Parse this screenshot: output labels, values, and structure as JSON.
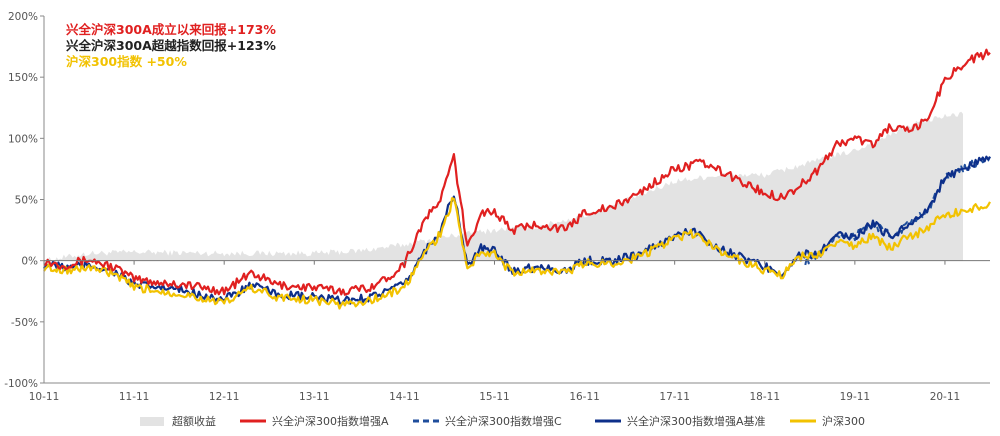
{
  "chart_data": {
    "type": "line",
    "x_ticks": [
      "10-11",
      "11-11",
      "12-11",
      "13-11",
      "14-11",
      "15-11",
      "16-11",
      "17-11",
      "18-11",
      "19-11",
      "20-11"
    ],
    "y_ticks": [
      "200%",
      "150%",
      "100%",
      "50%",
      "0%",
      "-50%",
      "-100%"
    ],
    "ylim": [
      -100,
      200
    ],
    "grid": false,
    "legend_position": "bottom",
    "annotations": [
      {
        "text": "兴全沪深300A成立以来回报+173%",
        "color": "#e02020"
      },
      {
        "text": "兴全沪深300A超越指数回报+123%",
        "color": "#222222"
      },
      {
        "text": "沪深300指数 +50%",
        "color": "#f2c200"
      }
    ],
    "series": [
      {
        "name": "超额收益",
        "style": "area",
        "color": "#e3e3e3",
        "values": [
          [
            0,
            0
          ],
          [
            0.5,
            6
          ],
          [
            1,
            7
          ],
          [
            2,
            6
          ],
          [
            3,
            6
          ],
          [
            3.5,
            8
          ],
          [
            4,
            13
          ],
          [
            4.5,
            20
          ],
          [
            5,
            25
          ],
          [
            5.5,
            28
          ],
          [
            6,
            37
          ],
          [
            6.5,
            50
          ],
          [
            7,
            65
          ],
          [
            7.5,
            70
          ],
          [
            8,
            70
          ],
          [
            8.5,
            80
          ],
          [
            9,
            90
          ],
          [
            9.3,
            100
          ],
          [
            9.7,
            113
          ],
          [
            10,
            118
          ],
          [
            10.2,
            120
          ]
        ]
      },
      {
        "name": "兴全沪深300指数增强A",
        "style": "solid",
        "color": "#e02020",
        "values": [
          [
            0,
            0
          ],
          [
            0.2,
            -4
          ],
          [
            0.5,
            1
          ],
          [
            0.8,
            -6
          ],
          [
            1,
            -15
          ],
          [
            1.3,
            -18
          ],
          [
            1.6,
            -20
          ],
          [
            2,
            -25
          ],
          [
            2.3,
            -10
          ],
          [
            2.6,
            -20
          ],
          [
            3,
            -22
          ],
          [
            3.3,
            -25
          ],
          [
            3.6,
            -22
          ],
          [
            3.8,
            -15
          ],
          [
            4,
            -2
          ],
          [
            4.2,
            30
          ],
          [
            4.4,
            50
          ],
          [
            4.55,
            85
          ],
          [
            4.7,
            10
          ],
          [
            4.85,
            40
          ],
          [
            5,
            40
          ],
          [
            5.2,
            25
          ],
          [
            5.5,
            30
          ],
          [
            5.8,
            25
          ],
          [
            6,
            40
          ],
          [
            6.3,
            43
          ],
          [
            6.6,
            55
          ],
          [
            7,
            75
          ],
          [
            7.3,
            80
          ],
          [
            7.6,
            70
          ],
          [
            8,
            55
          ],
          [
            8.2,
            52
          ],
          [
            8.4,
            62
          ],
          [
            8.6,
            75
          ],
          [
            8.8,
            95
          ],
          [
            9,
            100
          ],
          [
            9.2,
            95
          ],
          [
            9.4,
            110
          ],
          [
            9.6,
            105
          ],
          [
            9.8,
            115
          ],
          [
            10,
            148
          ],
          [
            10.1,
            155
          ],
          [
            10.3,
            165
          ],
          [
            10.5,
            170
          ]
        ]
      },
      {
        "name": "兴全沪深300指数增强C",
        "style": "dashed",
        "color": "#1f4e9c",
        "values": [
          [
            8.45,
            0
          ],
          [
            8.6,
            5
          ],
          [
            8.8,
            20
          ],
          [
            9,
            20
          ],
          [
            9.2,
            30
          ],
          [
            9.4,
            20
          ],
          [
            9.6,
            30
          ],
          [
            9.8,
            40
          ],
          [
            10,
            68
          ],
          [
            10.2,
            75
          ],
          [
            10.4,
            82
          ],
          [
            10.5,
            85
          ]
        ]
      },
      {
        "name": "兴全沪深300指数增强A基准",
        "style": "solid",
        "color": "#0d2f8a",
        "values": [
          [
            0,
            -3
          ],
          [
            0.3,
            -6
          ],
          [
            0.5,
            -3
          ],
          [
            0.8,
            -10
          ],
          [
            1,
            -20
          ],
          [
            1.3,
            -22
          ],
          [
            1.6,
            -25
          ],
          [
            2,
            -32
          ],
          [
            2.3,
            -20
          ],
          [
            2.6,
            -28
          ],
          [
            3,
            -30
          ],
          [
            3.3,
            -33
          ],
          [
            3.6,
            -30
          ],
          [
            3.8,
            -25
          ],
          [
            4,
            -20
          ],
          [
            4.2,
            5
          ],
          [
            4.4,
            25
          ],
          [
            4.55,
            55
          ],
          [
            4.7,
            -5
          ],
          [
            4.85,
            10
          ],
          [
            5,
            8
          ],
          [
            5.2,
            -8
          ],
          [
            5.5,
            -5
          ],
          [
            5.8,
            -8
          ],
          [
            6,
            0
          ],
          [
            6.3,
            0
          ],
          [
            6.6,
            5
          ],
          [
            7,
            20
          ],
          [
            7.2,
            25
          ],
          [
            7.5,
            10
          ],
          [
            8,
            -5
          ],
          [
            8.2,
            -10
          ],
          [
            8.4,
            5
          ],
          [
            8.6,
            5
          ],
          [
            8.8,
            20
          ],
          [
            9,
            20
          ],
          [
            9.2,
            30
          ],
          [
            9.4,
            20
          ],
          [
            9.6,
            30
          ],
          [
            9.8,
            40
          ],
          [
            10,
            68
          ],
          [
            10.2,
            75
          ],
          [
            10.4,
            82
          ],
          [
            10.5,
            85
          ]
        ]
      },
      {
        "name": "沪深300",
        "style": "solid",
        "color": "#f2c200",
        "values": [
          [
            0,
            -5
          ],
          [
            0.3,
            -8
          ],
          [
            0.5,
            -5
          ],
          [
            0.8,
            -12
          ],
          [
            1,
            -22
          ],
          [
            1.3,
            -25
          ],
          [
            1.6,
            -28
          ],
          [
            2,
            -35
          ],
          [
            2.3,
            -22
          ],
          [
            2.6,
            -30
          ],
          [
            3,
            -32
          ],
          [
            3.3,
            -36
          ],
          [
            3.6,
            -33
          ],
          [
            3.8,
            -28
          ],
          [
            4,
            -22
          ],
          [
            4.2,
            3
          ],
          [
            4.4,
            22
          ],
          [
            4.55,
            52
          ],
          [
            4.7,
            -8
          ],
          [
            4.85,
            8
          ],
          [
            5,
            5
          ],
          [
            5.2,
            -10
          ],
          [
            5.5,
            -8
          ],
          [
            5.8,
            -10
          ],
          [
            6,
            -2
          ],
          [
            6.3,
            -2
          ],
          [
            6.6,
            3
          ],
          [
            7,
            18
          ],
          [
            7.2,
            22
          ],
          [
            7.5,
            8
          ],
          [
            8,
            -8
          ],
          [
            8.2,
            -12
          ],
          [
            8.4,
            3
          ],
          [
            8.6,
            5
          ],
          [
            8.8,
            15
          ],
          [
            9,
            12
          ],
          [
            9.2,
            20
          ],
          [
            9.4,
            10
          ],
          [
            9.6,
            20
          ],
          [
            9.8,
            25
          ],
          [
            10,
            38
          ],
          [
            10.2,
            40
          ],
          [
            10.4,
            45
          ],
          [
            10.5,
            48
          ]
        ]
      }
    ]
  }
}
